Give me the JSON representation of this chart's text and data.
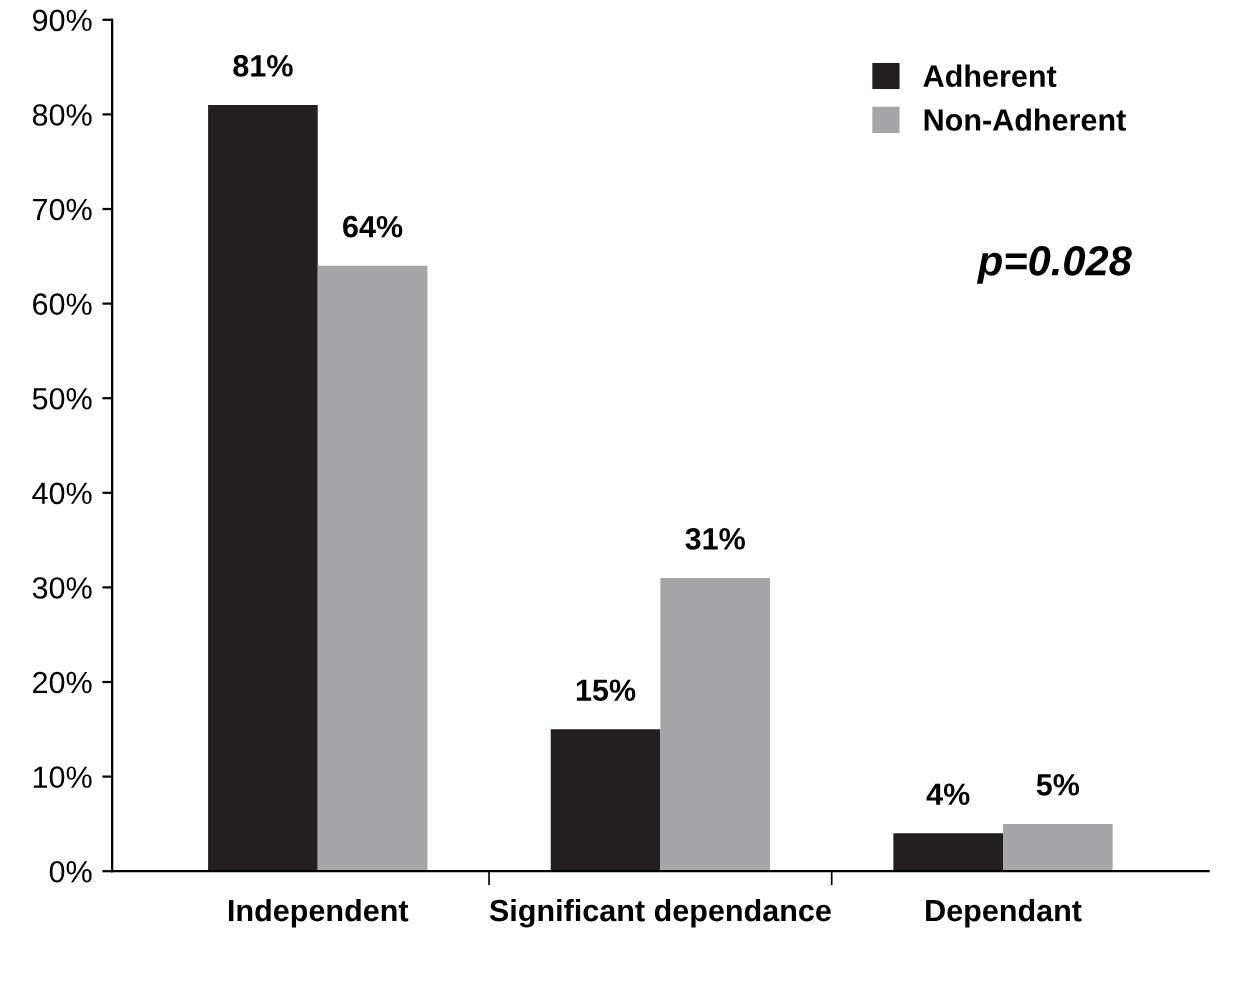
{
  "chart_data": {
    "type": "bar",
    "categories": [
      "Independent",
      "Significant dependance",
      "Dependant"
    ],
    "series": [
      {
        "name": "Adherent",
        "color": "#231f20",
        "values": [
          81,
          15,
          4
        ]
      },
      {
        "name": "Non-Adherent",
        "color": "#a6a6a8",
        "values": [
          64,
          31,
          5
        ]
      }
    ],
    "ylim": [
      0,
      90
    ],
    "yticks": [
      {
        "value": 0,
        "label": "0%"
      },
      {
        "value": 10,
        "label": "10%"
      },
      {
        "value": 20,
        "label": "20%"
      },
      {
        "value": 30,
        "label": "30%"
      },
      {
        "value": 40,
        "label": "40%"
      },
      {
        "value": 50,
        "label": "50%"
      },
      {
        "value": 60,
        "label": "60%"
      },
      {
        "value": 70,
        "label": "70%"
      },
      {
        "value": 80,
        "label": "80%"
      },
      {
        "value": 90,
        "label": "90%"
      }
    ],
    "value_labels": [
      [
        "81%",
        "15%",
        "4%"
      ],
      [
        "64%",
        "31%",
        "5%"
      ]
    ],
    "annotations": [
      "p=0.028"
    ],
    "grid": false,
    "legend": "top right"
  }
}
